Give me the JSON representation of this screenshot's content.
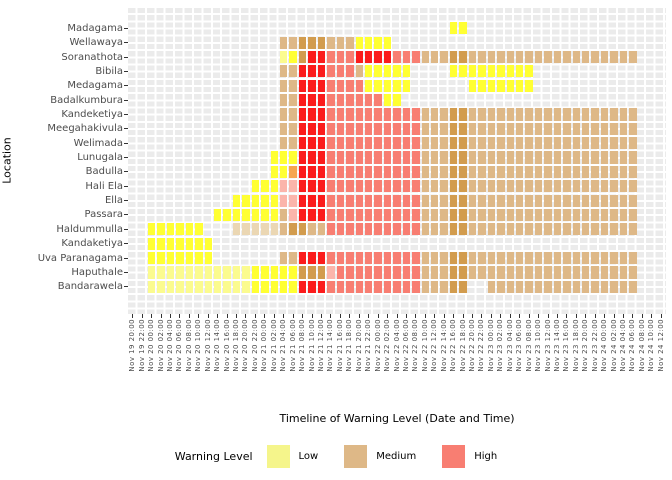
{
  "chart_data": {
    "type": "heatmap",
    "xlabel": "Timeline of Warning Level (Date and Time)",
    "ylabel": "Location",
    "legend": {
      "title": "Warning Level",
      "items": [
        {
          "label": "Low",
          "color": "#F5F58B"
        },
        {
          "label": "Medium",
          "color": "#DEB887"
        },
        {
          "label": "High",
          "color": "#F87E72"
        }
      ],
      "position": "bottom"
    },
    "grid": "on",
    "panel_color": "#EBEBEB",
    "palette": {
      "low": "#FFFF33",
      "low-pale": "#FBFB8F",
      "medium": "#DEB887",
      "medium-dark": "#D29C4E",
      "medium-light": "#EBD7B3",
      "high": "#FB1C1C",
      "high-salmon": "#F87E72",
      "high-pale": "#FBB5AB",
      "blend-orange": "#F6A54F"
    },
    "x_labels": [
      "Nov 19 20:00",
      "Nov 19 22:00",
      "Nov 20 00:00",
      "Nov 20 02:00",
      "Nov 20 04:00",
      "Nov 20 06:00",
      "Nov 20 08:00",
      "Nov 20 10:00",
      "Nov 20 12:00",
      "Nov 20 14:00",
      "Nov 20 16:00",
      "Nov 20 18:00",
      "Nov 20 20:00",
      "Nov 20 22:00",
      "Nov 21 00:00",
      "Nov 21 02:00",
      "Nov 21 04:00",
      "Nov 21 06:00",
      "Nov 21 08:00",
      "Nov 21 10:00",
      "Nov 21 12:00",
      "Nov 21 14:00",
      "Nov 21 16:00",
      "Nov 21 18:00",
      "Nov 21 20:00",
      "Nov 21 22:00",
      "Nov 22 00:00",
      "Nov 22 02:00",
      "Nov 22 04:00",
      "Nov 22 06:00",
      "Nov 22 08:00",
      "Nov 22 10:00",
      "Nov 22 12:00",
      "Nov 22 14:00",
      "Nov 22 16:00",
      "Nov 22 18:00",
      "Nov 22 20:00",
      "Nov 22 22:00",
      "Nov 23 00:00",
      "Nov 23 02:00",
      "Nov 23 04:00",
      "Nov 23 06:00",
      "Nov 23 08:00",
      "Nov 23 10:00",
      "Nov 23 12:00",
      "Nov 23 14:00",
      "Nov 23 16:00",
      "Nov 23 18:00",
      "Nov 23 20:00",
      "Nov 23 22:00",
      "Nov 24 00:00",
      "Nov 24 02:00",
      "Nov 24 04:00",
      "Nov 24 06:00",
      "Nov 24 08:00",
      "Nov 24 10:00",
      "Nov 24 12:00"
    ],
    "y_labels": [
      "Madagama",
      "Wellawaya",
      "Soranathota",
      "Bibila",
      "Medagama",
      "Badalkumbura",
      "Kandeketiya",
      "Meegahakivula",
      "Welimada",
      "Lunugala",
      "Badulla",
      "Hali Ela",
      "Ella",
      "Passara",
      "Haldummulla",
      "Kandaketiya",
      "Uva Paranagama",
      "Haputhale",
      "Bandarawela"
    ],
    "rows": [
      {
        "location": "Madagama",
        "segments": [
          [
            35,
            36,
            "low"
          ]
        ]
      },
      {
        "location": "Wellawaya",
        "segments": [
          [
            17,
            18,
            "medium"
          ],
          [
            19,
            21,
            "medium-dark"
          ],
          [
            22,
            24,
            "medium"
          ],
          [
            25,
            28,
            "low"
          ]
        ]
      },
      {
        "location": "Soranathota",
        "segments": [
          [
            17,
            17,
            "low-pale"
          ],
          [
            18,
            18,
            "low"
          ],
          [
            19,
            19,
            "medium-dark"
          ],
          [
            20,
            21,
            "high"
          ],
          [
            22,
            24,
            "high-salmon"
          ],
          [
            25,
            28,
            "high"
          ],
          [
            29,
            31,
            "high-salmon"
          ],
          [
            32,
            34,
            "medium"
          ],
          [
            35,
            36,
            "medium-dark"
          ],
          [
            37,
            54,
            "medium"
          ]
        ]
      },
      {
        "location": "Bibila",
        "segments": [
          [
            17,
            18,
            "medium"
          ],
          [
            19,
            21,
            "high"
          ],
          [
            22,
            24,
            "high-salmon"
          ],
          [
            25,
            25,
            "medium"
          ],
          [
            26,
            30,
            "low"
          ],
          [
            35,
            43,
            "low"
          ]
        ]
      },
      {
        "location": "Medagama",
        "segments": [
          [
            17,
            18,
            "medium"
          ],
          [
            19,
            21,
            "high"
          ],
          [
            22,
            25,
            "high-salmon"
          ],
          [
            26,
            30,
            "low"
          ],
          [
            37,
            43,
            "low"
          ]
        ]
      },
      {
        "location": "Badalkumbura",
        "segments": [
          [
            17,
            18,
            "medium"
          ],
          [
            19,
            21,
            "high"
          ],
          [
            22,
            27,
            "high-salmon"
          ],
          [
            28,
            29,
            "low"
          ]
        ]
      },
      {
        "location": "Kandeketiya",
        "segments": [
          [
            17,
            18,
            "medium"
          ],
          [
            19,
            21,
            "high"
          ],
          [
            22,
            31,
            "high-salmon"
          ],
          [
            32,
            34,
            "medium"
          ],
          [
            35,
            36,
            "medium-dark"
          ],
          [
            37,
            54,
            "medium"
          ]
        ]
      },
      {
        "location": "Meegahakivula",
        "segments": [
          [
            17,
            18,
            "medium"
          ],
          [
            19,
            21,
            "high"
          ],
          [
            22,
            31,
            "high-salmon"
          ],
          [
            32,
            34,
            "medium"
          ],
          [
            35,
            36,
            "medium-dark"
          ],
          [
            37,
            54,
            "medium"
          ]
        ]
      },
      {
        "location": "Welimada",
        "segments": [
          [
            17,
            18,
            "medium"
          ],
          [
            19,
            21,
            "high"
          ],
          [
            22,
            31,
            "high-salmon"
          ],
          [
            32,
            34,
            "medium"
          ],
          [
            35,
            36,
            "medium-dark"
          ],
          [
            37,
            54,
            "medium"
          ]
        ]
      },
      {
        "location": "Lunugala",
        "segments": [
          [
            16,
            18,
            "low"
          ],
          [
            19,
            21,
            "high"
          ],
          [
            22,
            31,
            "high-salmon"
          ],
          [
            32,
            34,
            "medium"
          ],
          [
            35,
            36,
            "medium-dark"
          ],
          [
            37,
            54,
            "medium"
          ]
        ]
      },
      {
        "location": "Badulla",
        "segments": [
          [
            16,
            17,
            "low"
          ],
          [
            18,
            18,
            "blend-orange"
          ],
          [
            19,
            21,
            "high"
          ],
          [
            22,
            31,
            "high-salmon"
          ],
          [
            32,
            34,
            "medium"
          ],
          [
            35,
            36,
            "medium-dark"
          ],
          [
            37,
            54,
            "medium"
          ]
        ]
      },
      {
        "location": "Hali Ela",
        "segments": [
          [
            14,
            16,
            "low"
          ],
          [
            17,
            18,
            "high-pale"
          ],
          [
            19,
            21,
            "high"
          ],
          [
            22,
            31,
            "high-salmon"
          ],
          [
            32,
            34,
            "medium"
          ],
          [
            35,
            36,
            "medium-dark"
          ],
          [
            37,
            54,
            "medium"
          ]
        ]
      },
      {
        "location": "Ella",
        "segments": [
          [
            12,
            16,
            "low"
          ],
          [
            17,
            18,
            "high-pale"
          ],
          [
            19,
            21,
            "high"
          ],
          [
            22,
            31,
            "high-salmon"
          ],
          [
            32,
            34,
            "medium"
          ],
          [
            35,
            36,
            "medium-dark"
          ],
          [
            37,
            54,
            "medium"
          ]
        ]
      },
      {
        "location": "Passara",
        "segments": [
          [
            10,
            16,
            "low"
          ],
          [
            17,
            17,
            "medium"
          ],
          [
            18,
            18,
            "high-pale"
          ],
          [
            19,
            21,
            "high"
          ],
          [
            22,
            31,
            "high-salmon"
          ],
          [
            32,
            34,
            "medium"
          ],
          [
            35,
            36,
            "medium-dark"
          ],
          [
            37,
            54,
            "medium"
          ]
        ]
      },
      {
        "location": "Haldummulla",
        "segments": [
          [
            3,
            8,
            "low"
          ],
          [
            12,
            16,
            "medium-light"
          ],
          [
            17,
            17,
            "medium"
          ],
          [
            18,
            19,
            "medium-dark"
          ],
          [
            20,
            21,
            "medium"
          ],
          [
            22,
            31,
            "high-salmon"
          ],
          [
            32,
            34,
            "medium"
          ],
          [
            35,
            36,
            "medium-dark"
          ],
          [
            37,
            54,
            "medium"
          ]
        ]
      },
      {
        "location": "Kandaketiya",
        "segments": [
          [
            3,
            9,
            "low"
          ]
        ]
      },
      {
        "location": "Uva Paranagama",
        "segments": [
          [
            3,
            9,
            "low"
          ],
          [
            17,
            18,
            "medium"
          ],
          [
            19,
            21,
            "high"
          ],
          [
            22,
            31,
            "high-salmon"
          ],
          [
            32,
            34,
            "medium"
          ],
          [
            35,
            36,
            "medium-dark"
          ],
          [
            37,
            54,
            "medium"
          ]
        ]
      },
      {
        "location": "Haputhale",
        "segments": [
          [
            3,
            13,
            "low-pale"
          ],
          [
            14,
            18,
            "low"
          ],
          [
            19,
            21,
            "medium-dark"
          ],
          [
            22,
            22,
            "high-pale"
          ],
          [
            23,
            31,
            "high-salmon"
          ],
          [
            32,
            34,
            "medium"
          ],
          [
            35,
            36,
            "medium-dark"
          ],
          [
            37,
            54,
            "medium"
          ]
        ]
      },
      {
        "location": "Bandarawela",
        "segments": [
          [
            3,
            13,
            "low-pale"
          ],
          [
            14,
            18,
            "low"
          ],
          [
            19,
            21,
            "high"
          ],
          [
            22,
            31,
            "high-salmon"
          ],
          [
            32,
            34,
            "medium"
          ],
          [
            35,
            36,
            "medium-dark"
          ],
          [
            39,
            54,
            "medium"
          ]
        ]
      }
    ]
  }
}
